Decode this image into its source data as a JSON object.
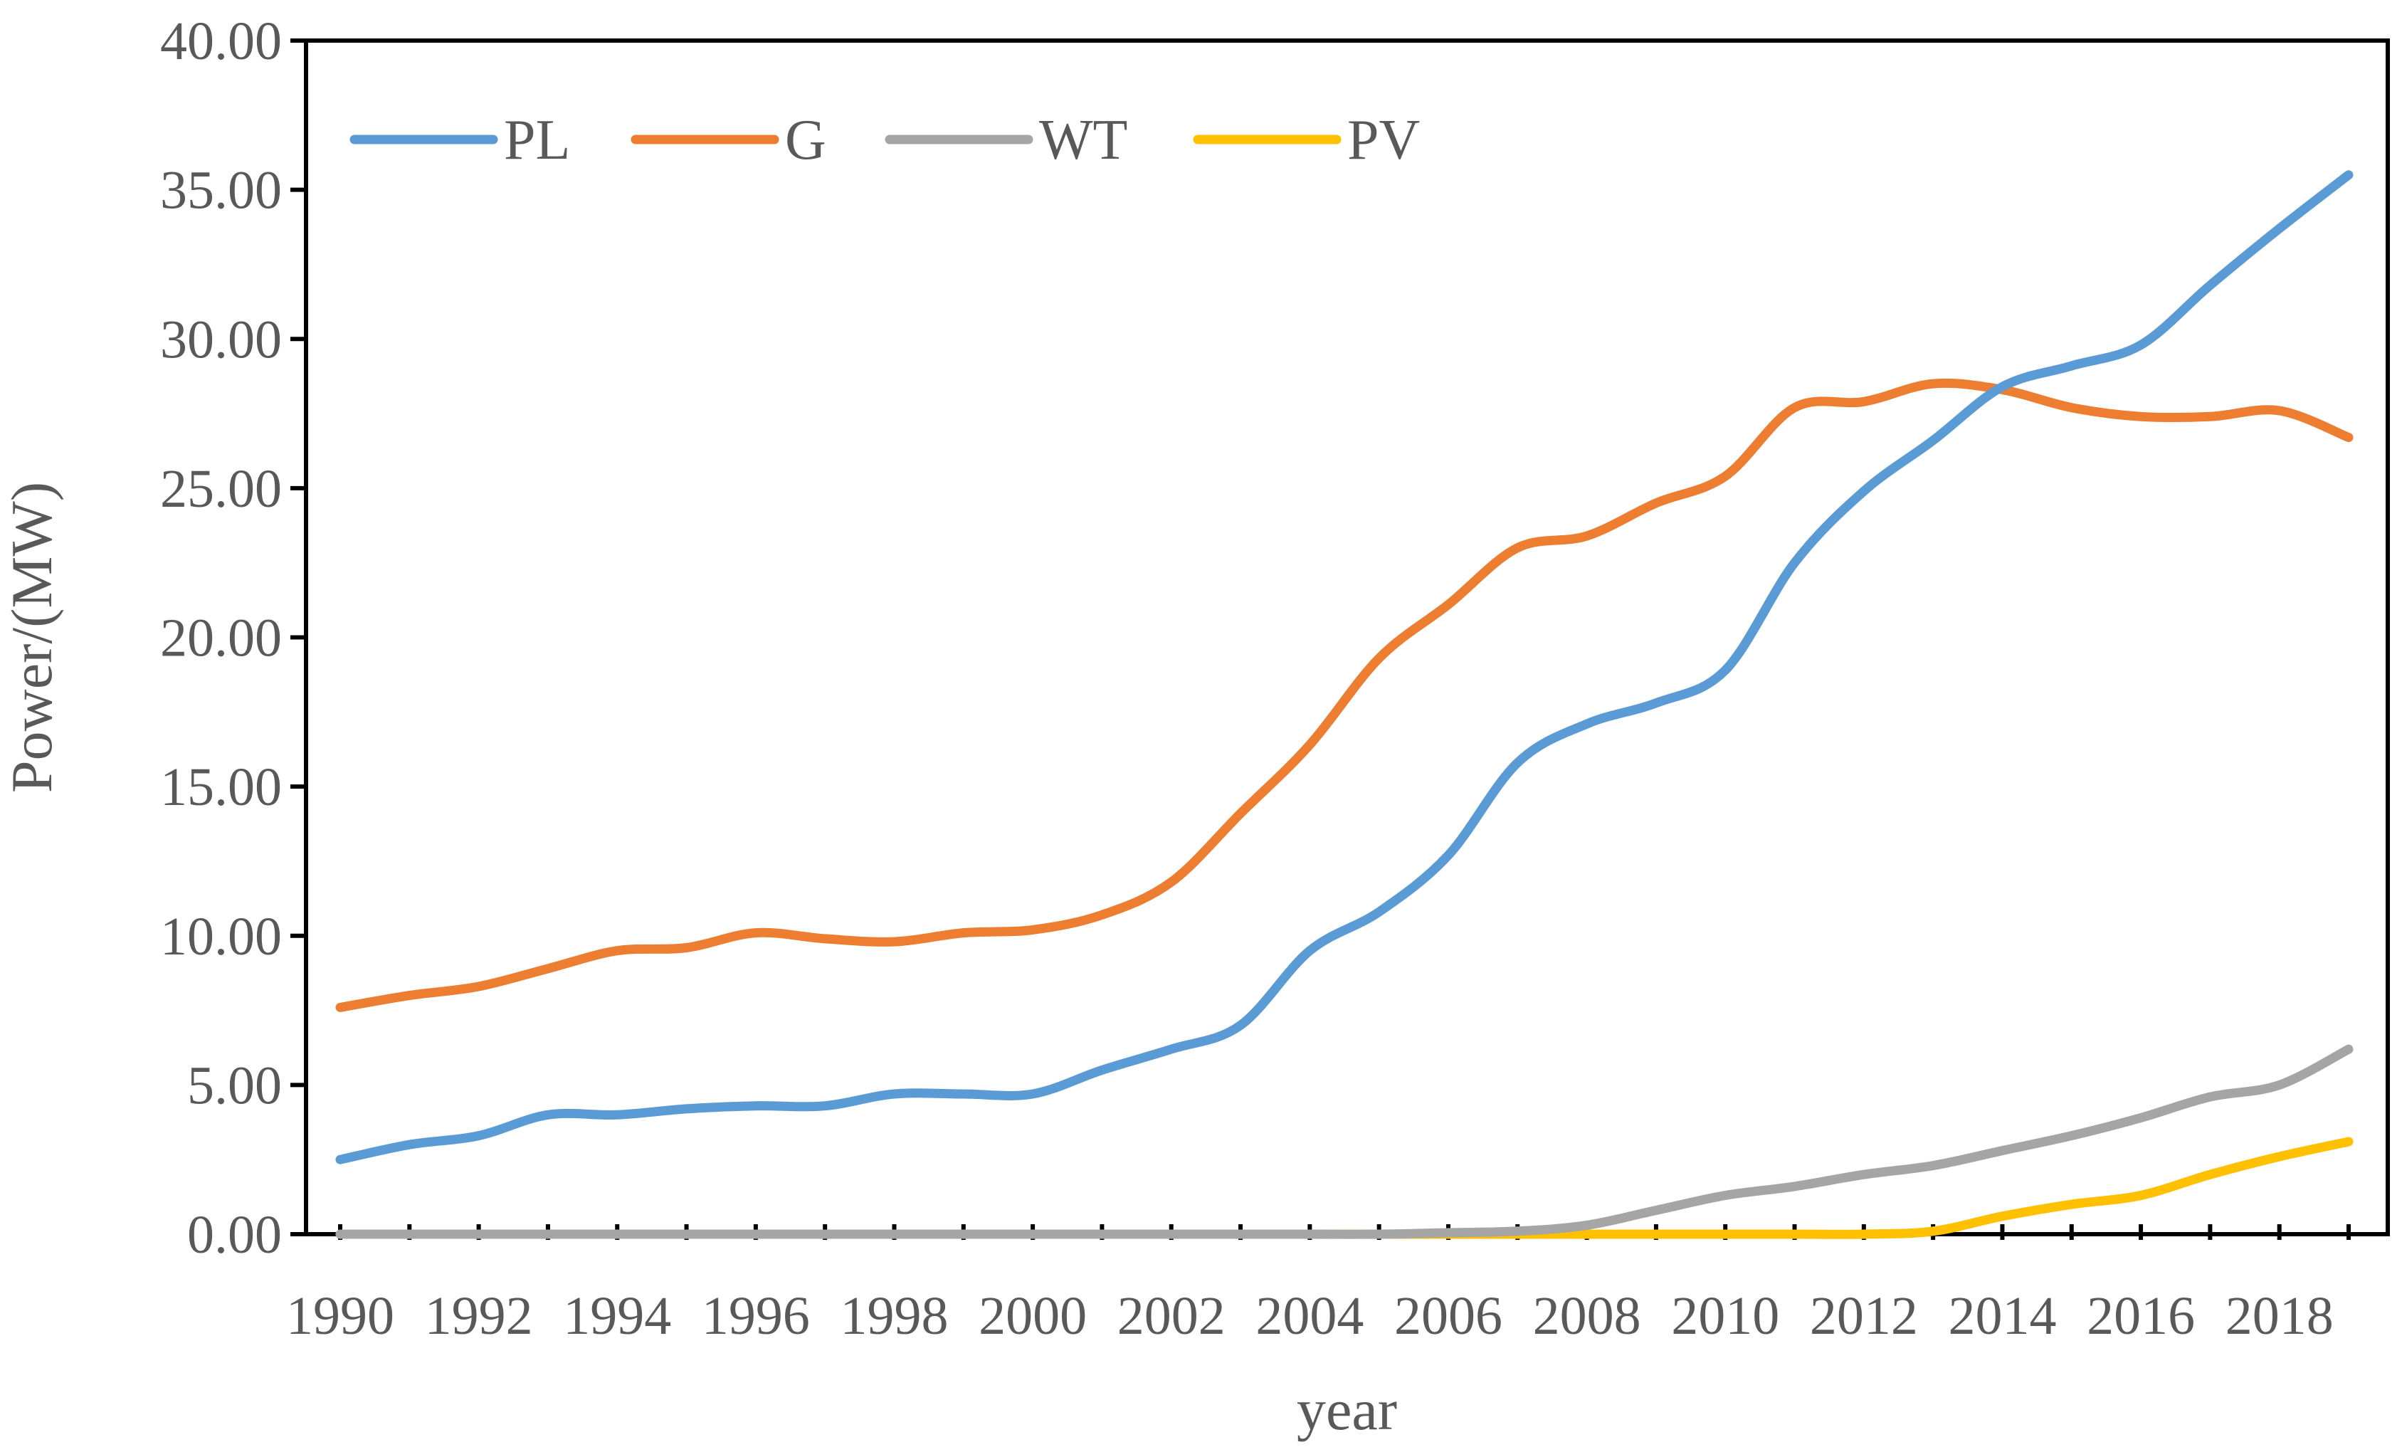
{
  "chart_data": {
    "type": "line",
    "title": "",
    "xlabel": "year",
    "ylabel": "Power/(MW)",
    "x": [
      1990,
      1991,
      1992,
      1993,
      1994,
      1995,
      1996,
      1997,
      1998,
      1999,
      2000,
      2001,
      2002,
      2003,
      2004,
      2005,
      2006,
      2007,
      2008,
      2009,
      2010,
      2011,
      2012,
      2013,
      2014,
      2015,
      2016,
      2017,
      2018,
      2019
    ],
    "xticks": [
      "1990",
      "1992",
      "1994",
      "1996",
      "1998",
      "2000",
      "2002",
      "2004",
      "2006",
      "2008",
      "2010",
      "2012",
      "2014",
      "2016",
      "2018"
    ],
    "ylim": [
      0,
      40
    ],
    "yticks": [
      "0.00",
      "5.00",
      "10.00",
      "15.00",
      "20.00",
      "25.00",
      "30.00",
      "35.00",
      "40.00"
    ],
    "legend_position": "top-left",
    "grid": false,
    "series": [
      {
        "name": "PL",
        "color": "#5B9BD5",
        "values": [
          2.5,
          3.0,
          3.3,
          4.0,
          4.0,
          4.2,
          4.3,
          4.3,
          4.7,
          4.7,
          4.7,
          5.5,
          6.2,
          7.0,
          9.5,
          10.8,
          12.7,
          15.8,
          17.1,
          17.8,
          18.9,
          22.5,
          24.9,
          26.6,
          28.4,
          29.1,
          29.8,
          31.8,
          33.7,
          35.5
        ]
      },
      {
        "name": "G",
        "color": "#ED7D31",
        "values": [
          7.6,
          8.0,
          8.3,
          8.9,
          9.5,
          9.6,
          10.1,
          9.9,
          9.8,
          10.1,
          10.2,
          10.7,
          11.8,
          14.1,
          16.4,
          19.3,
          21.1,
          23.0,
          23.4,
          24.5,
          25.4,
          27.7,
          27.9,
          28.5,
          28.3,
          27.7,
          27.4,
          27.4,
          27.6,
          26.7
        ]
      },
      {
        "name": "WT",
        "color": "#A5A5A5",
        "values": [
          0,
          0,
          0,
          0,
          0,
          0,
          0,
          0,
          0,
          0,
          0,
          0,
          0,
          0,
          0,
          0,
          0.05,
          0.1,
          0.3,
          0.8,
          1.3,
          1.6,
          2.0,
          2.3,
          2.8,
          3.3,
          3.9,
          4.6,
          5.0,
          6.2
        ]
      },
      {
        "name": "PV",
        "color": "#FFC000",
        "values": [
          0,
          0,
          0,
          0,
          0,
          0,
          0,
          0,
          0,
          0,
          0,
          0,
          0,
          0,
          0,
          0,
          0,
          0,
          0,
          0,
          0,
          0,
          0,
          0.1,
          0.6,
          1.0,
          1.3,
          2.0,
          2.6,
          3.1
        ]
      }
    ]
  }
}
